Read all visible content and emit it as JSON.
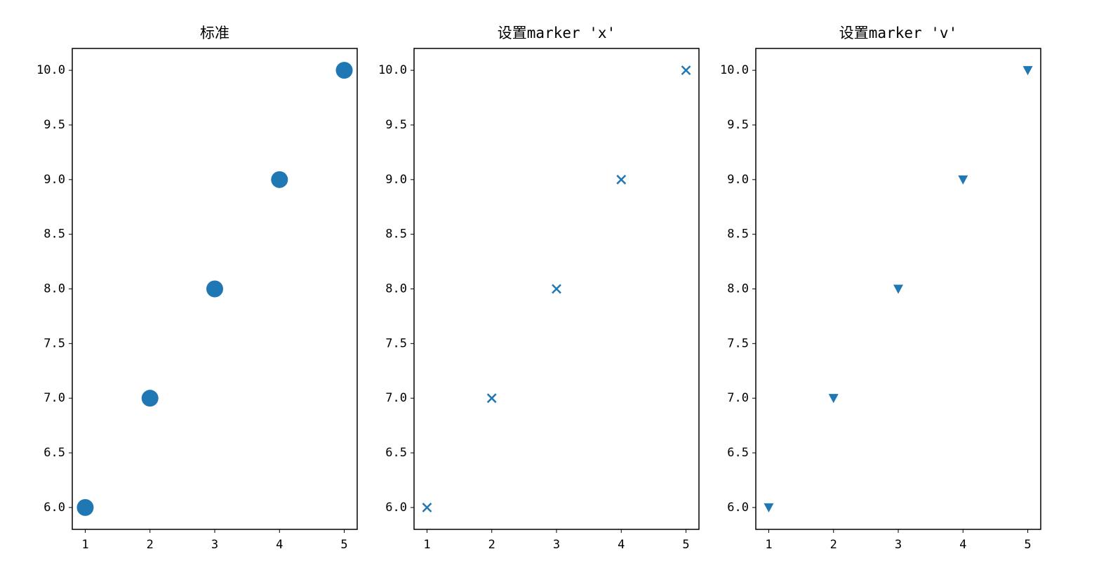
{
  "chart_data": [
    {
      "type": "scatter",
      "title": "标准",
      "x": [
        1,
        2,
        3,
        4,
        5
      ],
      "values": [
        6,
        7,
        8,
        9,
        10
      ],
      "color": "#1f77b4",
      "marker": "o",
      "xlim": [
        0.8,
        5.2
      ],
      "ylim": [
        5.8,
        10.2
      ],
      "xticks": [
        1,
        2,
        3,
        4,
        5
      ],
      "yticks": [
        {
          "value": 6,
          "label": "6.0"
        },
        6.5,
        {
          "value": 7,
          "label": "7.0"
        },
        7.5,
        {
          "value": 8,
          "label": "8.0"
        },
        8.5,
        {
          "value": 9,
          "label": "9.0"
        },
        9.5,
        {
          "value": 10,
          "label": "10.0"
        }
      ]
    },
    {
      "type": "scatter",
      "title": "设置marker 'x'",
      "x": [
        1,
        2,
        3,
        4,
        5
      ],
      "values": [
        6,
        7,
        8,
        9,
        10
      ],
      "color": "#1f77b4",
      "marker": "x",
      "xlim": [
        0.8,
        5.2
      ],
      "ylim": [
        5.8,
        10.2
      ],
      "xticks": [
        1,
        2,
        3,
        4,
        5
      ],
      "yticks": [
        {
          "value": 6,
          "label": "6.0"
        },
        6.5,
        {
          "value": 7,
          "label": "7.0"
        },
        7.5,
        {
          "value": 8,
          "label": "8.0"
        },
        8.5,
        {
          "value": 9,
          "label": "9.0"
        },
        9.5,
        {
          "value": 10,
          "label": "10.0"
        }
      ]
    },
    {
      "type": "scatter",
      "title": "设置marker 'v'",
      "x": [
        1,
        2,
        3,
        4,
        5
      ],
      "values": [
        6,
        7,
        8,
        9,
        10
      ],
      "color": "#1f77b4",
      "marker": "v",
      "xlim": [
        0.8,
        5.2
      ],
      "ylim": [
        5.8,
        10.2
      ],
      "xticks": [
        1,
        2,
        3,
        4,
        5
      ],
      "yticks": [
        {
          "value": 6,
          "label": "6.0"
        },
        6.5,
        {
          "value": 7,
          "label": "7.0"
        },
        7.5,
        {
          "value": 8,
          "label": "8.0"
        },
        8.5,
        {
          "value": 9,
          "label": "9.0"
        },
        9.5,
        {
          "value": 10,
          "label": "10.0"
        }
      ]
    }
  ]
}
